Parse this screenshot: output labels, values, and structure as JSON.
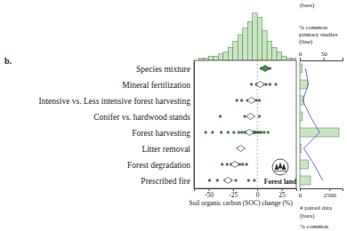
{
  "chart_data": [
    {
      "type": "forest",
      "categories": [
        "Species mixture",
        "Mineral fertilization",
        "Intensive vs. Less intensive forest harvesting",
        "Conifer vs. hardwood stands",
        "Forest harvesting",
        "Litter removal",
        "Forest degradation",
        "Prescribed fire"
      ],
      "values": [
        8,
        3,
        -6,
        -7,
        -8,
        -17,
        -23,
        -30
      ],
      "points": [
        [
          4,
          6,
          7,
          9,
          11,
          13
        ],
        [
          -6,
          -1,
          2,
          4,
          6,
          9,
          13,
          19
        ],
        [
          -21,
          -16,
          -10,
          -7,
          -4,
          -1,
          2
        ],
        [
          -38,
          -13,
          -6,
          2
        ],
        [
          -53,
          -46,
          -37,
          -30,
          -24,
          -19,
          -16,
          -13,
          -11,
          -9,
          -8,
          -6,
          -5,
          -4,
          -3,
          -2,
          0,
          2,
          4,
          7,
          11
        ],
        [
          -19,
          -16
        ],
        [
          -36,
          -31,
          -27,
          -24,
          -21,
          -18,
          -15,
          -11
        ],
        [
          -49,
          -41,
          -33,
          -27,
          -22,
          -9,
          -3
        ]
      ],
      "color": "#1f5a1f",
      "colors": [
        "#3f8f3f",
        "#ffffff",
        "#ffffff",
        "#ffffff",
        "#ffffff",
        "#ffffff",
        "#ffffff",
        "#ffffff"
      ],
      "reference_x": 0,
      "xlim": [
        -65,
        40
      ],
      "xticks": [
        -50,
        -25,
        0,
        25
      ],
      "x_label": "Soil organic carbon (SOC) change (%)",
      "grid": false,
      "annotations": [
        "b.",
        "Forest land"
      ]
    },
    {
      "type": "histogram",
      "bins": [
        -60,
        -55,
        -50,
        -45,
        -40,
        -35,
        -30,
        -25,
        -20,
        -15,
        -10,
        -5,
        0,
        5,
        10,
        15,
        20,
        25,
        30,
        35,
        40
      ],
      "counts": [
        1,
        1,
        2,
        2,
        3,
        4,
        6,
        9,
        12,
        15,
        18,
        22,
        20,
        14,
        9,
        6,
        4,
        2,
        1,
        1
      ],
      "xlim": [
        -65,
        40
      ],
      "ylim": [
        0,
        24
      ],
      "tick_labels": false,
      "color": "#c8e6c0"
    },
    {
      "type": "bar",
      "orientation": "horizontal",
      "series": [
        {
          "type": "bar",
          "color": "#c8e6c0",
          "values": [
            180,
            650,
            350,
            220,
            3300,
            90,
            700,
            900
          ]
        },
        {
          "type": "line",
          "axis": "y2",
          "color": "#5b5bd6",
          "values": [
            12,
            18,
            6,
            22,
            42,
            8,
            30,
            48
          ]
        }
      ],
      "ylim": [
        0,
        3600
      ],
      "yticks": [
        0,
        2500
      ],
      "y_label": [
        "# paired data",
        "(bars)"
      ],
      "y2lim": [
        0,
        90
      ],
      "y2ticks": [
        0,
        50
      ],
      "y2_label": [
        "% common",
        "primary studies",
        "(line)"
      ]
    }
  ],
  "cropped_text": [
    "(bars)",
    "% common"
  ]
}
